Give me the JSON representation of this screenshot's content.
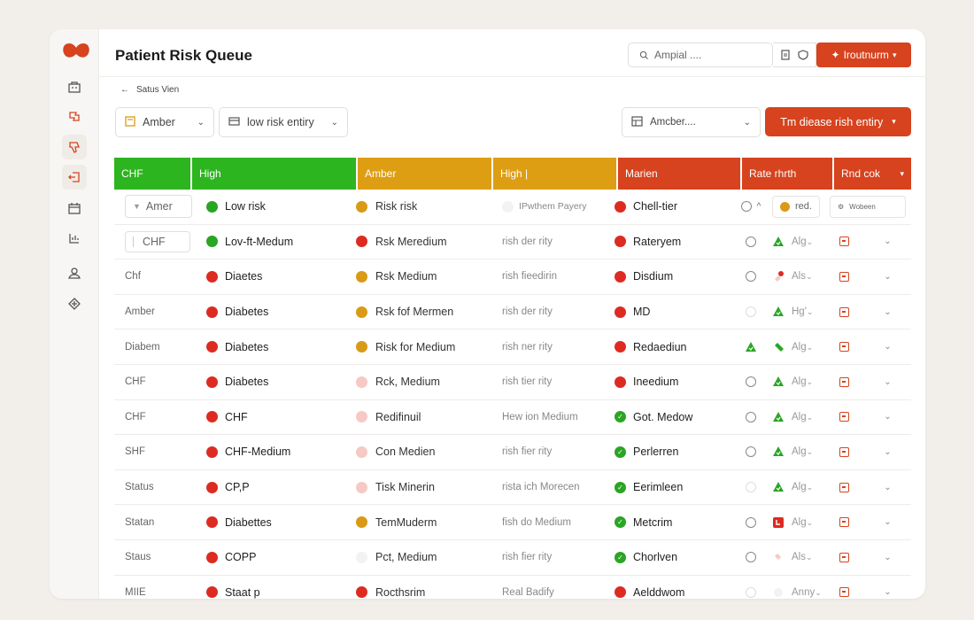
{
  "header": {
    "title": "Patient Risk Queue",
    "search_value": "Ampial ....",
    "primary_button": "Iroutnurm"
  },
  "breadcrumb": {
    "back_label": "Satus Vien"
  },
  "filters": {
    "select1": "Amber",
    "select2": "low risk entiry",
    "select3": "Amcber....",
    "action_button": "Tm diease rish entiry"
  },
  "table": {
    "headers": [
      {
        "label": "CHF",
        "color": "#2db51f"
      },
      {
        "label": "High",
        "color": "#2db51f"
      },
      {
        "label": "Amber",
        "color": "#de9e14"
      },
      {
        "label": "High |",
        "color": "#de9e14"
      },
      {
        "label": "Marien",
        "color": "#d6431e"
      },
      {
        "label": "Rate rhrth",
        "color": "#d6431e"
      },
      {
        "label": "Rnd cok",
        "color": "#d6431e"
      }
    ],
    "first_row": {
      "c0": "Amer",
      "condition": "Low risk",
      "risk": "Risk risk",
      "note": "IPwthem Payery",
      "tier": "Chell-tier",
      "score": "red.",
      "extra": "Wobeen"
    },
    "rows": [
      {
        "c0": "CHF",
        "cond_dot": "green",
        "condition": "Lov-ft-Medum",
        "risk_dot": "red",
        "risk": "Rsk Meredium",
        "note": "rish der rity",
        "tier_dot": "red",
        "tier": "Rateryem",
        "status": "ring",
        "flag": "tri",
        "flag_text": "Alg",
        "boxed": true
      },
      {
        "c0": "Chf",
        "cond_dot": "red",
        "condition": "Diaetes",
        "risk_dot": "amber",
        "risk": "Rsk Medium",
        "note": "rish fieedirin",
        "tier_dot": "red",
        "tier": "Disdium",
        "status": "ring",
        "flag": "pin",
        "flag_text": "Als"
      },
      {
        "c0": "Amber",
        "cond_dot": "red",
        "condition": "Diabetes",
        "risk_dot": "amber",
        "risk": "Rsk fof Mermen",
        "note": "rish der rity",
        "tier_dot": "red",
        "tier": "MD",
        "status": "ring-faint",
        "flag": "tri",
        "flag_text": "Hg'"
      },
      {
        "c0": "Diabem",
        "cond_dot": "red",
        "condition": "Diabetes",
        "risk_dot": "amber",
        "risk": "Risk for Medium",
        "note": "rish ner rity",
        "tier_dot": "red",
        "tier": "Redaediun",
        "status": "tri",
        "flag": "pill",
        "flag_text": "Alg"
      },
      {
        "c0": "CHF",
        "cond_dot": "red",
        "condition": "Diabetes",
        "risk_dot": "pale",
        "risk": "Rck, Medium",
        "note": "rish tier rity",
        "tier_dot": "red",
        "tier": "Ineedium",
        "status": "ring",
        "flag": "tri",
        "flag_text": "Alg"
      },
      {
        "c0": "CHF",
        "cond_dot": "red",
        "condition": "CHF",
        "risk_dot": "pale",
        "risk": "Redifinuil",
        "note": "Hew ion Medium",
        "tier_dot": "green",
        "tier": "Got. Medow",
        "status": "ring",
        "flag": "tri",
        "flag_text": "Alg"
      },
      {
        "c0": "SHF",
        "cond_dot": "red",
        "condition": "CHF-Medium",
        "risk_dot": "pale",
        "risk": "Con Medien",
        "note": "rish fier rity",
        "tier_dot": "green",
        "tier": "Perlerren",
        "status": "ring",
        "flag": "tri",
        "flag_text": "Alg"
      },
      {
        "c0": "Status",
        "cond_dot": "red",
        "condition": "CP,P",
        "risk_dot": "pale",
        "risk": "Tisk Minerin",
        "note": "rista ich Morecen",
        "tier_dot": "green",
        "tier": "Eerimleen",
        "status": "ring-faint",
        "flag": "tri",
        "flag_text": "Alg"
      },
      {
        "c0": "Statan",
        "cond_dot": "red",
        "condition": "Diabettes",
        "risk_dot": "amber",
        "risk": "TemMuderm",
        "note": "fish do Medium",
        "tier_dot": "green",
        "tier": "Metcrim",
        "status": "ring",
        "flag": "redsq",
        "flag_text": "Alg"
      },
      {
        "c0": "Staus",
        "cond_dot": "red",
        "condition": "COPP",
        "risk_dot": "faint",
        "risk": "Pct, Medium",
        "note": "rish fier rity",
        "tier_dot": "green",
        "tier": "Chorlven",
        "status": "ring",
        "flag": "pale-pin",
        "flag_text": "Als"
      },
      {
        "c0": "MIIE",
        "cond_dot": "red",
        "condition": "Staat p",
        "risk_dot": "red",
        "risk": "Rocthsrim",
        "note": "Real Badify",
        "tier_dot": "red",
        "tier": "Aelddwom",
        "status": "ring-faint",
        "flag": "faint",
        "flag_text": "Anny"
      }
    ]
  },
  "colors": {
    "accent": "#d6431e",
    "green": "#2db51f",
    "amber": "#de9e14"
  },
  "icons": [
    "logo-icon",
    "building-icon",
    "flag-icon",
    "thumbs-down-icon",
    "exit-icon",
    "calendar-icon",
    "chart-icon",
    "person-icon",
    "diamond-icon"
  ]
}
